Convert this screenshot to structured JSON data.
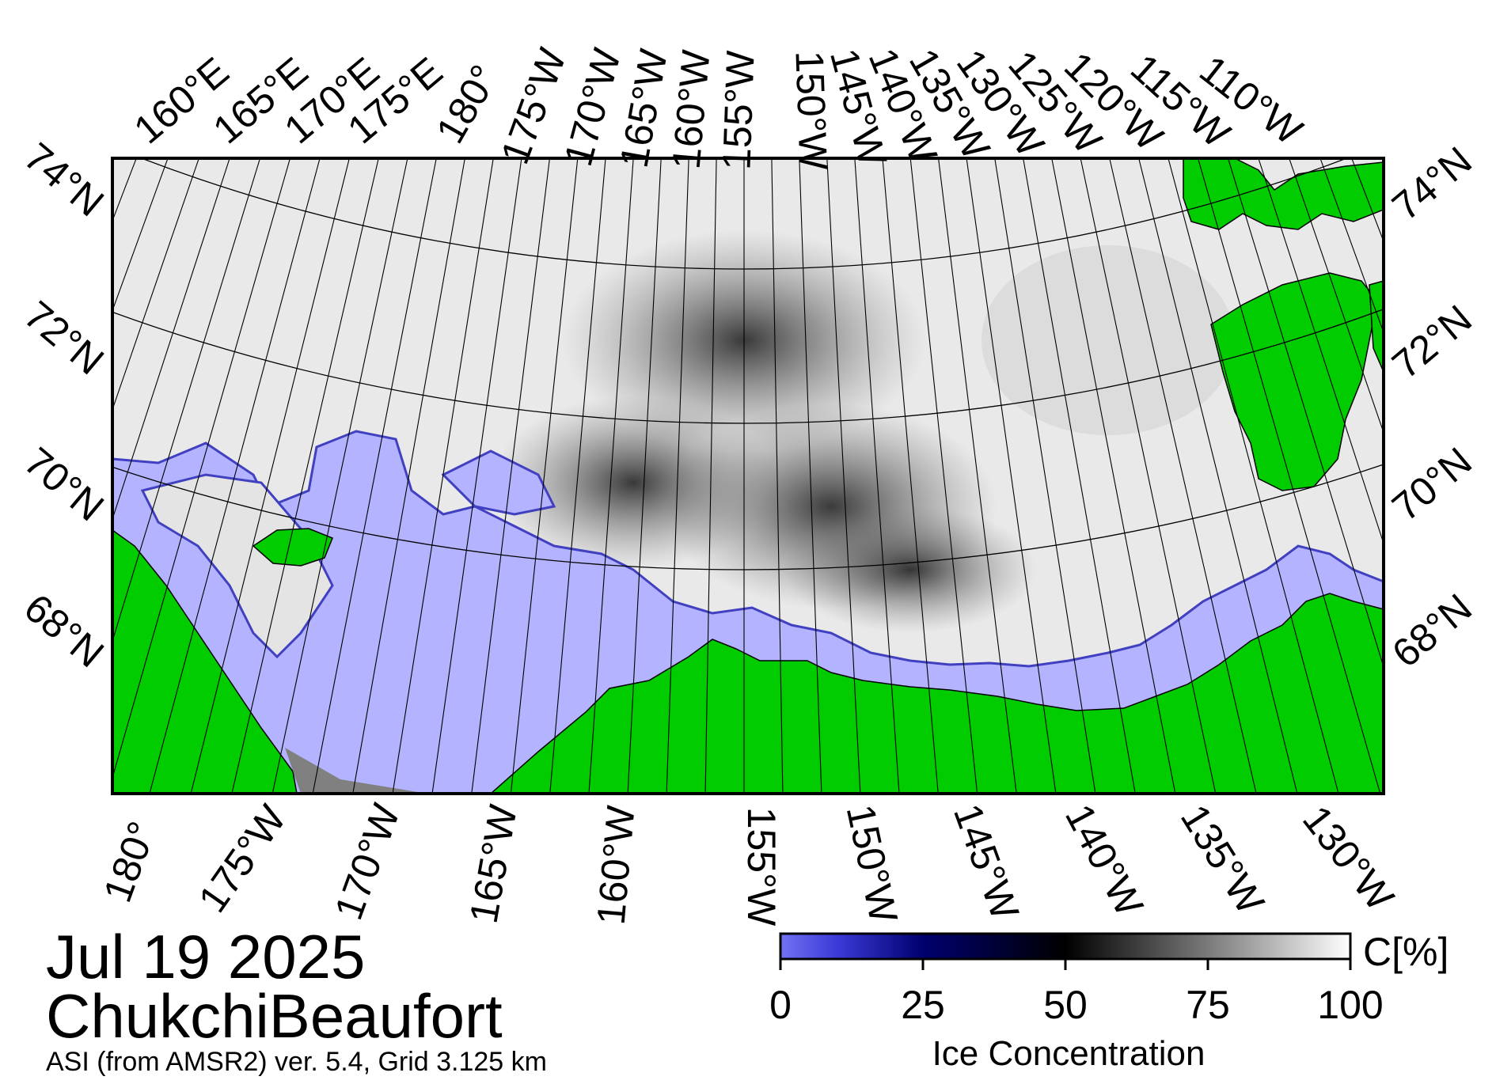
{
  "map": {
    "date": "Jul 19 2025",
    "region": "ChukchiBeaufort",
    "source": "ASI (from AMSR2) ver. 5.4,  Grid 3.125 km"
  },
  "colors": {
    "land": "#00cc00",
    "open_water": "#b3b3ff",
    "no_data": "#808080",
    "ice_full": "#ffffff",
    "ice_mid": "#000000",
    "ice_low": "#000080",
    "ice_zero": "#6666ee",
    "grid": "#000000"
  },
  "top_lon_labels": [
    "160°E",
    "165°E",
    "170°E",
    "175°E",
    "180°",
    "175°W",
    "170°W",
    "165°W",
    "160°W",
    "155°W",
    "150°W",
    "145°W",
    "140°W",
    "135°W",
    "130°W",
    "125°W",
    "120°W",
    "115°W",
    "110°W"
  ],
  "left_lat_labels": [
    "74°N",
    "72°N",
    "70°N",
    "68°N"
  ],
  "right_lat_labels": [
    "74°N",
    "72°N",
    "70°N",
    "68°N"
  ],
  "bottom_lon_labels": [
    "180°",
    "175°W",
    "170°W",
    "165°W",
    "160°W",
    "155°W",
    "150°W",
    "145°W",
    "140°W",
    "135°W",
    "130°W"
  ],
  "colorbar": {
    "label": "Ice Concentration",
    "unit": "C[%]",
    "ticks": [
      "0",
      "25",
      "50",
      "75",
      "100"
    ],
    "range": [
      0,
      100
    ]
  }
}
